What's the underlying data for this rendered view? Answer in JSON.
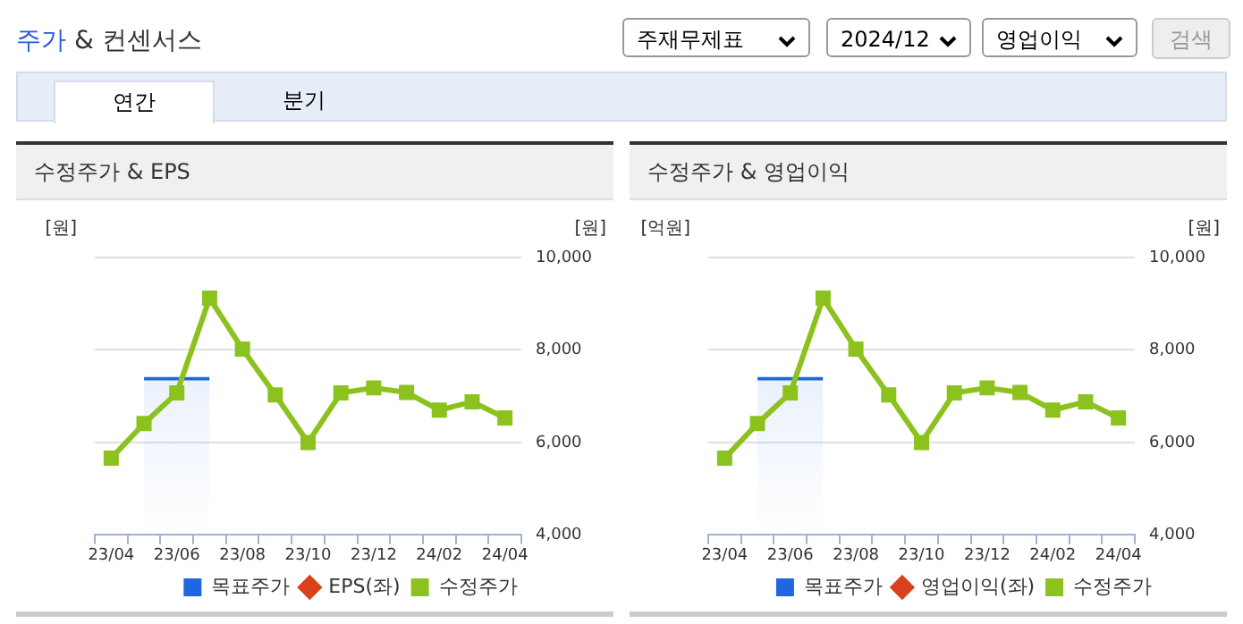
{
  "chart_data": [
    {
      "type": "other",
      "annotations": [
        "주가 & 컨센서스",
        "주재무제표",
        "2024/12",
        "영업이익",
        "검색",
        "연간",
        "분기"
      ]
    },
    {
      "type": "line",
      "title": "수정주가 & EPS",
      "ylabel": "[원]",
      "y2label": "[원]",
      "categories": [
        "23/04",
        null,
        "23/06",
        null,
        "23/08",
        null,
        "23/10",
        null,
        "23/12",
        null,
        "24/02",
        null,
        "24/04"
      ],
      "series": [
        {
          "name": "목표주가",
          "type": "bar",
          "axis": "y2",
          "color": "#1f66e0",
          "values": [
            null,
            null,
            7420,
            null,
            null,
            null,
            null,
            null,
            null,
            null,
            null,
            null,
            null
          ]
        },
        {
          "name": "EPS(좌)",
          "type": "line",
          "axis": "y",
          "marker": "diamond",
          "color": "#d9401c",
          "values": [
            null,
            null,
            null,
            null,
            null,
            null,
            null,
            null,
            null,
            null,
            null,
            null,
            null
          ]
        },
        {
          "name": "수정주가",
          "type": "line",
          "axis": "y2",
          "marker": "square",
          "color": "#8cc21e",
          "values": [
            5660,
            6410,
            7070,
            9120,
            8020,
            7030,
            6000,
            7070,
            7180,
            7080,
            6700,
            6880,
            6530
          ]
        }
      ],
      "y2lim": [
        4000,
        10000
      ],
      "y2ticks": [
        {
          "value": 4000,
          "label": "4,000"
        },
        {
          "value": 6000,
          "label": "6,000"
        },
        {
          "value": 8000,
          "label": "8,000"
        },
        {
          "value": 10000,
          "label": "10,000"
        }
      ],
      "grid": "y",
      "legend": "bottom"
    },
    {
      "type": "line",
      "title": "수정주가 & 영업이익",
      "ylabel": "[억원]",
      "y2label": "[원]",
      "categories": [
        "23/04",
        null,
        "23/06",
        null,
        "23/08",
        null,
        "23/10",
        null,
        "23/12",
        null,
        "24/02",
        null,
        "24/04"
      ],
      "series": [
        {
          "name": "목표주가",
          "type": "bar",
          "axis": "y2",
          "color": "#1f66e0",
          "values": [
            null,
            null,
            7420,
            null,
            null,
            null,
            null,
            null,
            null,
            null,
            null,
            null,
            null
          ]
        },
        {
          "name": "영업이익(좌)",
          "type": "line",
          "axis": "y",
          "marker": "diamond",
          "color": "#d9401c",
          "values": [
            null,
            null,
            null,
            null,
            null,
            null,
            null,
            null,
            null,
            null,
            null,
            null,
            null
          ]
        },
        {
          "name": "수정주가",
          "type": "line",
          "axis": "y2",
          "marker": "square",
          "color": "#8cc21e",
          "values": [
            5660,
            6410,
            7070,
            9120,
            8020,
            7030,
            6000,
            7070,
            7180,
            7080,
            6700,
            6880,
            6530
          ]
        }
      ],
      "y2lim": [
        4000,
        10000
      ],
      "y2ticks": [
        {
          "value": 4000,
          "label": "4,000"
        },
        {
          "value": 6000,
          "label": "6,000"
        },
        {
          "value": 8000,
          "label": "8,000"
        },
        {
          "value": 10000,
          "label": "10,000"
        }
      ],
      "grid": "y",
      "legend": "bottom"
    }
  ]
}
